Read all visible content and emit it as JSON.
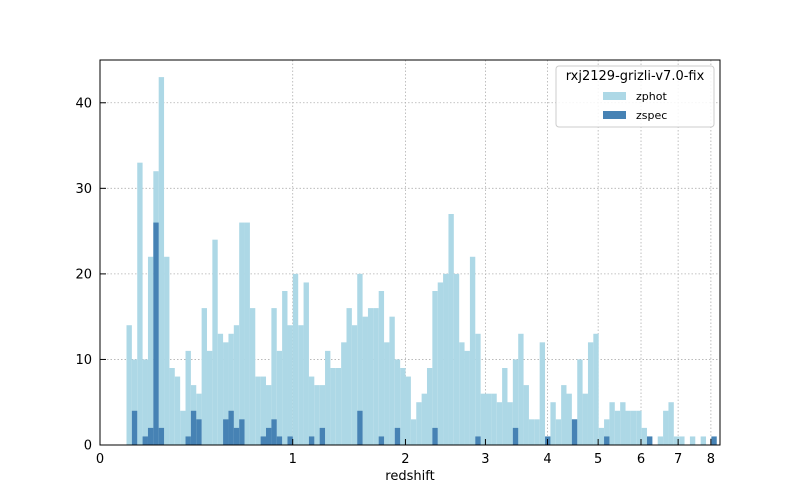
{
  "chart_data": {
    "type": "bar",
    "xlabel": "redshift",
    "ylabel": "",
    "x_scale": "log(1+z)",
    "xlim": [
      0,
      8.3
    ],
    "ylim": [
      0,
      45
    ],
    "x_ticks": [
      0,
      1,
      2,
      3,
      4,
      5,
      6,
      7,
      8
    ],
    "y_ticks": [
      0,
      10,
      20,
      30,
      40
    ],
    "grid": true,
    "legend": {
      "title": "rxj2129-grizli-v7.0-fix",
      "placement": "top-right",
      "entries": [
        "zphot",
        "zspec"
      ]
    },
    "series": [
      {
        "name": "zphot",
        "color": "#add8e6",
        "values": [
          14,
          10,
          33,
          10,
          22,
          32,
          43,
          22,
          9,
          8,
          4,
          11,
          7,
          6,
          16,
          11,
          24,
          13,
          12,
          13,
          14,
          26,
          26,
          16,
          8,
          8,
          7,
          16,
          11,
          18,
          14,
          20,
          14,
          19,
          8,
          7,
          7,
          11,
          9,
          9,
          12,
          16,
          14,
          20,
          15,
          16,
          16,
          18,
          12,
          15,
          10,
          9,
          8,
          3,
          5,
          6,
          9,
          18,
          19,
          20,
          27,
          20,
          12,
          11,
          22,
          13,
          6,
          6,
          6,
          5,
          9,
          5,
          10,
          13,
          7,
          3,
          3,
          12,
          1,
          5,
          3,
          7,
          6,
          3,
          10,
          6,
          12,
          13,
          2,
          3,
          5,
          4,
          5,
          4,
          4,
          4,
          2,
          1,
          0,
          1,
          4,
          5,
          1,
          1,
          0,
          1,
          0,
          1
        ]
      },
      {
        "name": "zspec",
        "color": "#4682b4",
        "values": [
          0,
          4,
          0,
          1,
          2,
          26,
          2,
          0,
          0,
          0,
          0,
          1,
          4,
          3,
          0,
          0,
          0,
          0,
          3,
          4,
          2,
          3,
          0,
          0,
          0,
          1,
          2,
          3,
          1,
          0,
          1,
          0,
          0,
          0,
          1,
          0,
          2,
          0,
          0,
          0,
          0,
          0,
          0,
          4,
          0,
          0,
          0,
          1,
          0,
          0,
          2,
          0,
          0,
          0,
          0,
          0,
          0,
          2,
          0,
          0,
          0,
          0,
          0,
          0,
          0,
          1,
          0,
          0,
          0,
          0,
          0,
          0,
          2,
          0,
          0,
          0,
          0,
          0,
          1,
          0,
          0,
          0,
          0,
          3,
          0,
          0,
          0,
          0,
          0,
          1,
          0,
          0,
          0,
          0,
          0,
          0,
          0,
          1,
          0,
          0,
          0,
          0,
          0,
          0,
          0,
          0,
          0,
          0,
          0,
          1,
          0,
          0,
          0,
          0
        ]
      }
    ]
  }
}
